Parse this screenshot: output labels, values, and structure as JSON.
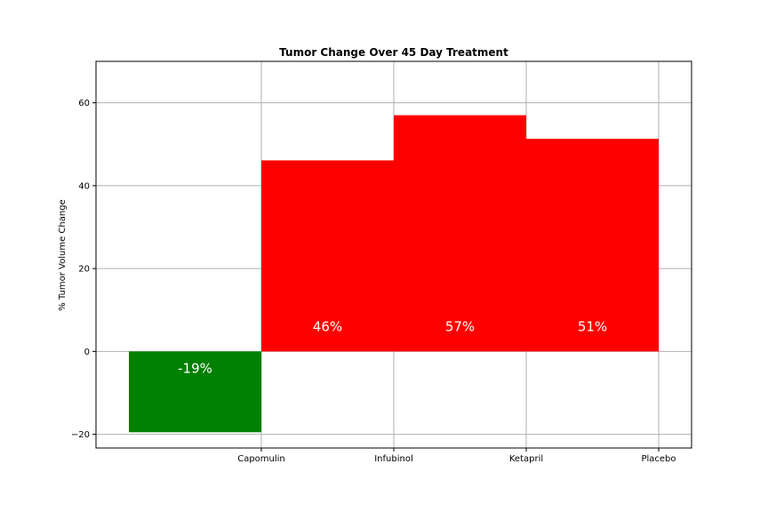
{
  "chart_data": {
    "type": "bar",
    "title": "Tumor Change Over 45 Day Treatment",
    "xlabel": "",
    "ylabel": "% Tumor Volume Change",
    "categories": [
      "Capomulin",
      "Infubinol",
      "Ketapril",
      "Placebo"
    ],
    "values": [
      -19.5,
      46.1,
      57.0,
      51.3
    ],
    "data_labels": [
      "-19%",
      "46%",
      "57%",
      "51%"
    ],
    "ylim": [
      -23.3,
      70
    ],
    "yticks": [
      -20,
      0,
      20,
      40,
      60
    ],
    "ytick_labels": [
      "−20",
      "0",
      "20",
      "40",
      "60"
    ],
    "grid": true,
    "bar_alignment": "bars drawn to the left of each category tick",
    "colors": {
      "positive": "#ff0000",
      "negative": "#008000",
      "label_text": "#ffffff",
      "grid": "#b0b0b0"
    }
  }
}
